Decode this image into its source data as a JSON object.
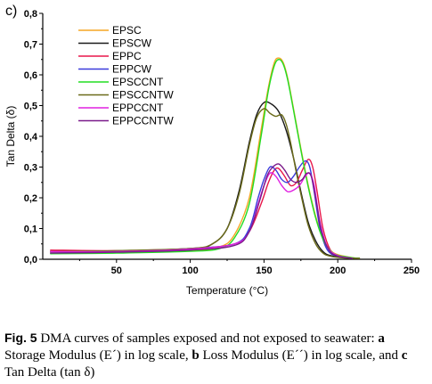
{
  "panel_label": "c)",
  "chart_data": {
    "type": "line",
    "xlabel": "Temperature (°C)",
    "ylabel": "Tan Delta (δ)",
    "xlim": [
      0,
      250
    ],
    "ylim": [
      0,
      0.8
    ],
    "x_ticks": [
      50,
      100,
      150,
      200,
      250
    ],
    "x_tick_labels": [
      "50",
      "100",
      "150",
      "200",
      "250"
    ],
    "y_ticks": [
      0.0,
      0.1,
      0.2,
      0.3,
      0.4,
      0.5,
      0.6,
      0.7,
      0.8
    ],
    "y_tick_labels": [
      "0,0",
      "0,1",
      "0,2",
      "0,3",
      "0,4",
      "0,5",
      "0,6",
      "0,7",
      "0,8"
    ],
    "grid": false,
    "legend_position": "top-left",
    "series": [
      {
        "name": "EPSC",
        "color": "#f5a623",
        "x": [
          5,
          50,
          100,
          120,
          130,
          140,
          148,
          153,
          157,
          160,
          163,
          166,
          170,
          175,
          180,
          185,
          190,
          195,
          200,
          210,
          215
        ],
        "y": [
          0.02,
          0.022,
          0.028,
          0.04,
          0.08,
          0.2,
          0.42,
          0.56,
          0.64,
          0.655,
          0.64,
          0.59,
          0.49,
          0.36,
          0.24,
          0.14,
          0.07,
          0.03,
          0.015,
          0.005,
          0.003
        ]
      },
      {
        "name": "EPSCW",
        "color": "#1a1a1a",
        "x": [
          5,
          50,
          100,
          115,
          125,
          133,
          140,
          145,
          150,
          155,
          160,
          165,
          170,
          175,
          180,
          185,
          190,
          195,
          205,
          215
        ],
        "y": [
          0.025,
          0.025,
          0.03,
          0.05,
          0.1,
          0.22,
          0.38,
          0.47,
          0.51,
          0.505,
          0.48,
          0.42,
          0.33,
          0.22,
          0.12,
          0.06,
          0.025,
          0.012,
          0.005,
          0.003
        ]
      },
      {
        "name": "EPPC",
        "color": "#e8174a",
        "x": [
          5,
          50,
          100,
          130,
          140,
          148,
          153,
          157,
          160,
          164,
          168,
          172,
          176,
          180,
          183,
          186,
          190,
          195,
          200,
          210,
          215
        ],
        "y": [
          0.03,
          0.028,
          0.035,
          0.05,
          0.09,
          0.18,
          0.25,
          0.29,
          0.295,
          0.27,
          0.24,
          0.25,
          0.29,
          0.325,
          0.3,
          0.22,
          0.1,
          0.03,
          0.012,
          0.004,
          0.003
        ]
      },
      {
        "name": "EPPCW",
        "color": "#3a3adb",
        "x": [
          5,
          50,
          100,
          130,
          140,
          146,
          150,
          154,
          158,
          162,
          166,
          170,
          174,
          178,
          181,
          184,
          188,
          193,
          200,
          210
        ],
        "y": [
          0.02,
          0.025,
          0.035,
          0.05,
          0.1,
          0.2,
          0.26,
          0.3,
          0.29,
          0.26,
          0.25,
          0.27,
          0.3,
          0.32,
          0.3,
          0.22,
          0.1,
          0.03,
          0.01,
          0.003
        ]
      },
      {
        "name": "EPSCCNT",
        "color": "#22dd22",
        "x": [
          5,
          50,
          100,
          120,
          130,
          140,
          148,
          153,
          157,
          160,
          163,
          166,
          170,
          175,
          180,
          185,
          190,
          195,
          200,
          210,
          215
        ],
        "y": [
          0.018,
          0.02,
          0.026,
          0.035,
          0.07,
          0.18,
          0.4,
          0.55,
          0.63,
          0.65,
          0.635,
          0.585,
          0.485,
          0.355,
          0.235,
          0.135,
          0.065,
          0.028,
          0.013,
          0.005,
          0.003
        ]
      },
      {
        "name": "EPSCCNTW",
        "color": "#6b6b1a",
        "x": [
          5,
          50,
          100,
          115,
          125,
          133,
          140,
          145,
          150,
          154,
          158,
          162,
          165,
          168,
          172,
          176,
          180,
          185,
          190,
          195,
          205,
          215
        ],
        "y": [
          0.025,
          0.028,
          0.035,
          0.05,
          0.1,
          0.21,
          0.37,
          0.46,
          0.49,
          0.475,
          0.465,
          0.47,
          0.44,
          0.38,
          0.28,
          0.19,
          0.11,
          0.05,
          0.02,
          0.01,
          0.004,
          0.003
        ]
      },
      {
        "name": "EPPCCNT",
        "color": "#e020e0",
        "x": [
          5,
          50,
          100,
          130,
          140,
          146,
          150,
          154,
          158,
          162,
          166,
          170,
          174,
          178,
          181,
          184,
          188,
          193,
          200,
          210
        ],
        "y": [
          0.025,
          0.025,
          0.033,
          0.05,
          0.09,
          0.18,
          0.24,
          0.28,
          0.27,
          0.24,
          0.22,
          0.225,
          0.24,
          0.27,
          0.28,
          0.24,
          0.12,
          0.04,
          0.012,
          0.003
        ]
      },
      {
        "name": "EPPCCNTW",
        "color": "#7a1a8a",
        "x": [
          5,
          50,
          100,
          130,
          140,
          147,
          152,
          156,
          160,
          164,
          168,
          172,
          176,
          179,
          182,
          185,
          189,
          194,
          200,
          210
        ],
        "y": [
          0.02,
          0.023,
          0.03,
          0.045,
          0.09,
          0.19,
          0.27,
          0.3,
          0.31,
          0.29,
          0.26,
          0.25,
          0.26,
          0.28,
          0.27,
          0.2,
          0.09,
          0.03,
          0.01,
          0.003
        ]
      }
    ]
  },
  "caption": {
    "fig": "Fig. 5",
    "t1": "  DMA curves of samples exposed and not exposed to seawater: ",
    "a": "a",
    "t2": " Storage Modulus (E´) in log scale, ",
    "b": "b",
    "t3": " Loss Modulus (E´´) in log scale, and ",
    "c": "c",
    "t4": " Tan Delta (tan δ)"
  }
}
